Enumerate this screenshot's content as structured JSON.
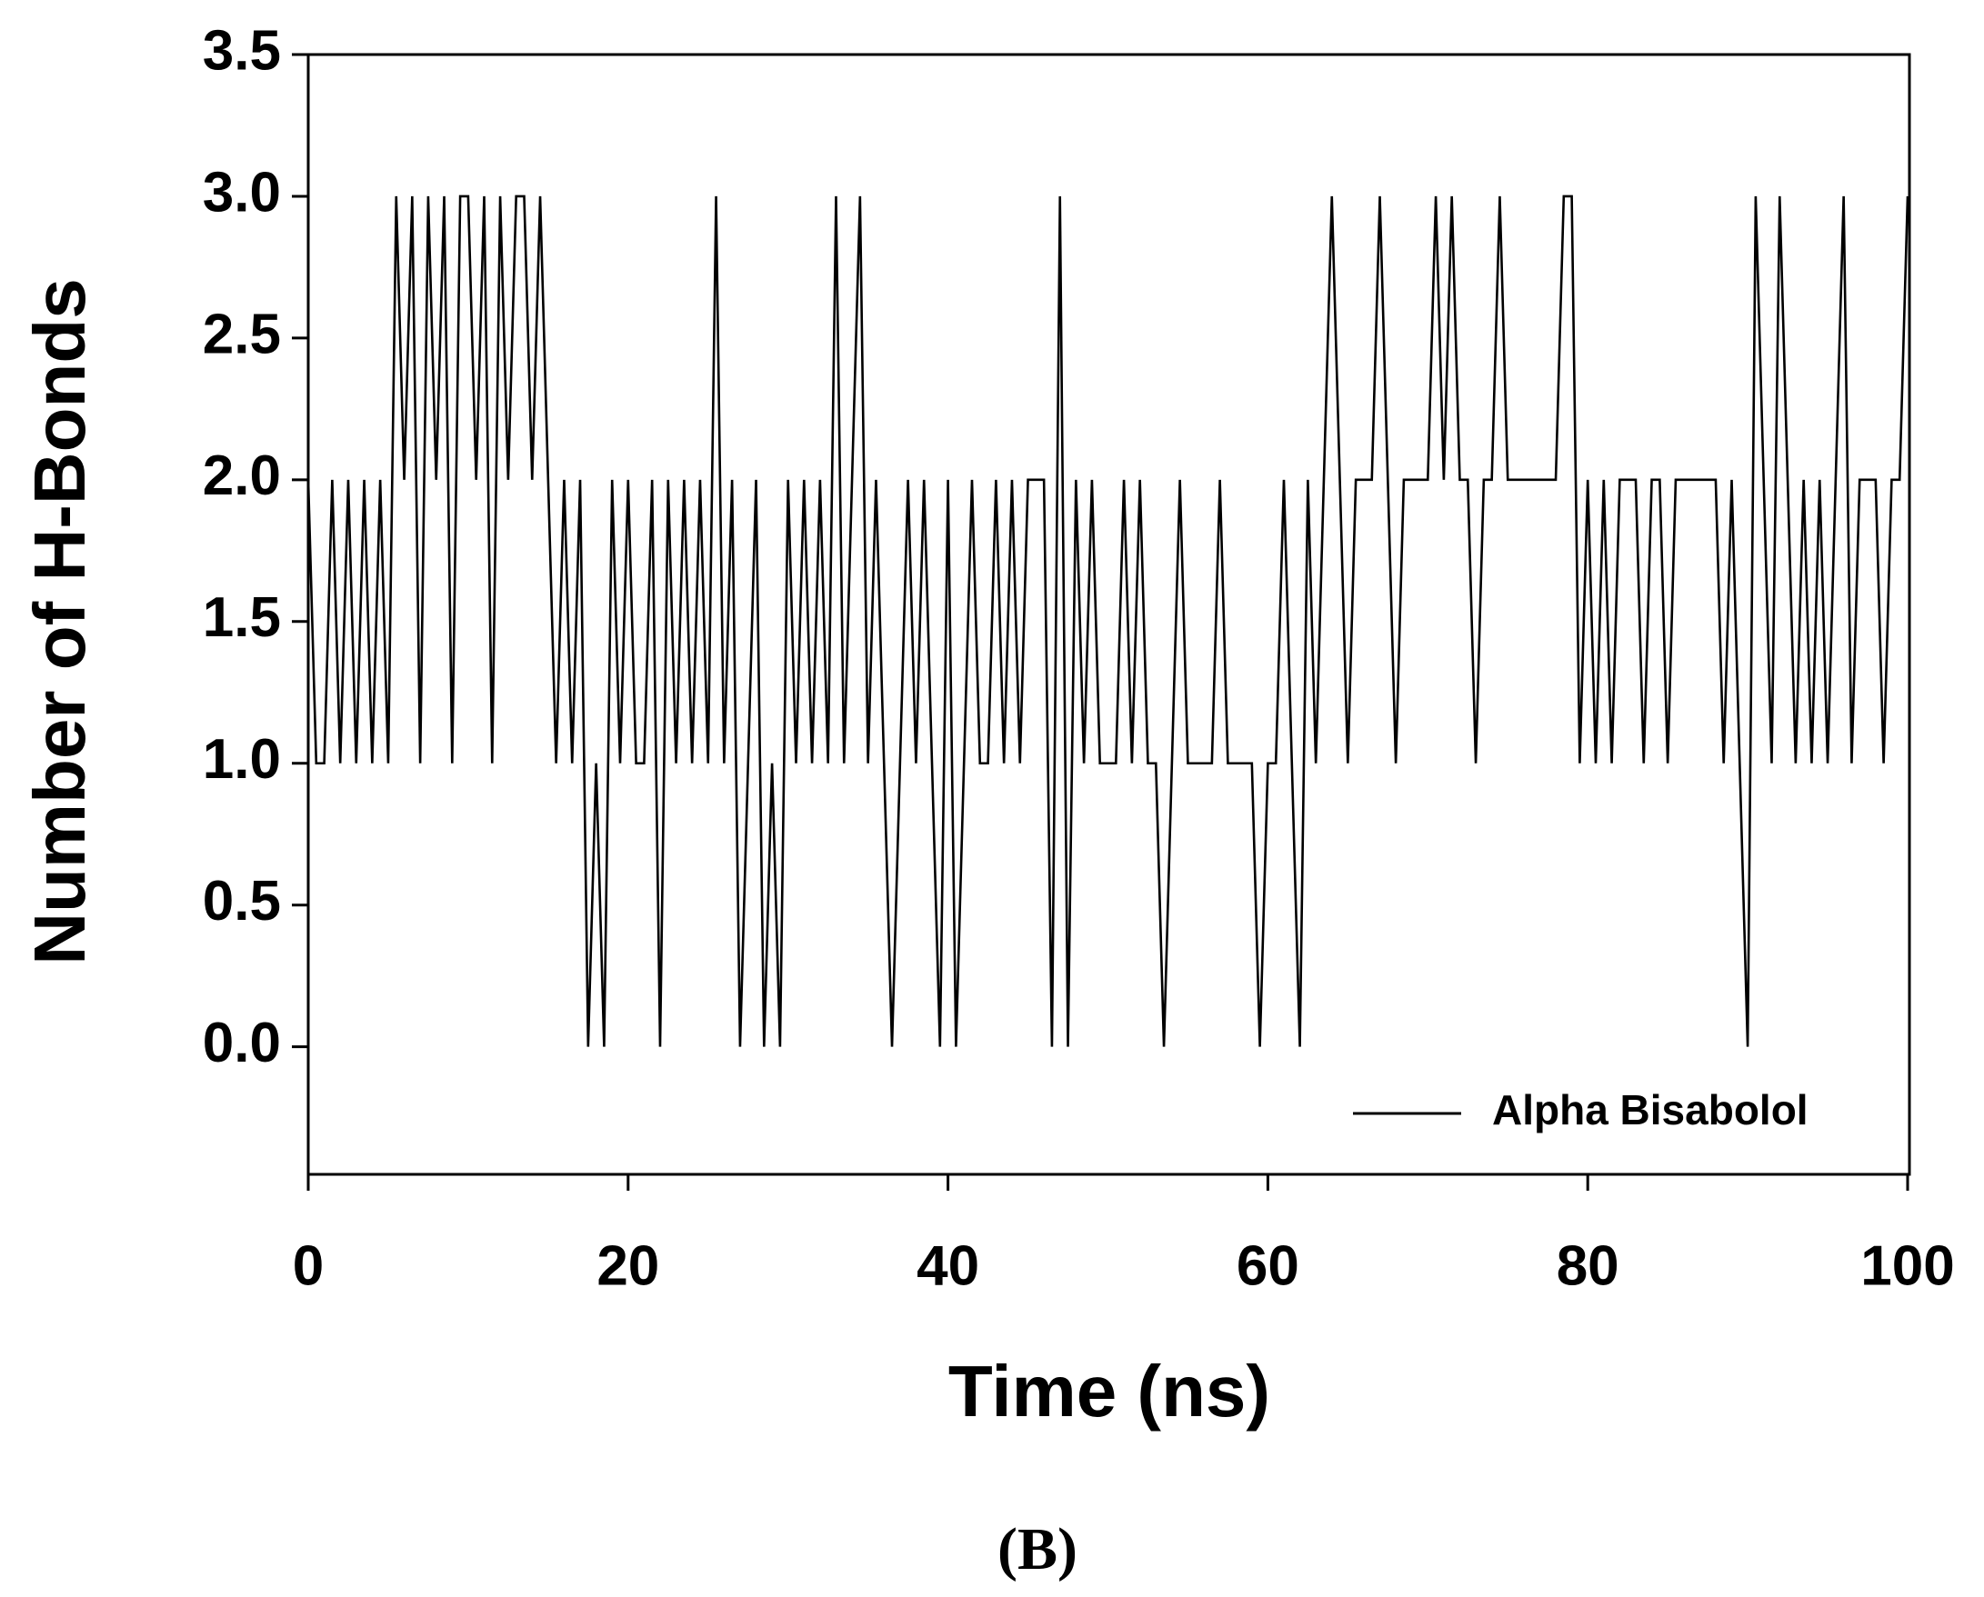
{
  "chart_data": {
    "type": "line",
    "xlabel": "Time (ns)",
    "ylabel": "Number of H-Bonds",
    "caption": "(B)",
    "x": [
      0,
      0.5,
      1,
      1.5,
      2,
      2.5,
      3,
      3.5,
      4,
      4.5,
      5,
      5.5,
      6,
      6.5,
      7,
      7.5,
      8,
      8.5,
      9,
      9.5,
      10,
      10.5,
      11,
      11.5,
      12,
      12.5,
      13,
      13.5,
      14,
      14.5,
      15,
      15.5,
      16,
      16.5,
      17,
      17.5,
      18,
      18.5,
      19,
      19.5,
      20,
      20.5,
      21,
      21.5,
      22,
      22.5,
      23,
      23.5,
      24,
      24.5,
      25,
      25.5,
      26,
      26.5,
      27,
      27.5,
      28,
      28.5,
      29,
      29.5,
      30,
      30.5,
      31,
      31.5,
      32,
      32.5,
      33,
      33.5,
      34,
      34.5,
      35,
      35.5,
      36,
      36.5,
      37,
      37.5,
      38,
      38.5,
      39,
      39.5,
      40,
      40.5,
      41,
      41.5,
      42,
      42.5,
      43,
      43.5,
      44,
      44.5,
      45,
      45.5,
      46,
      46.5,
      47,
      47.5,
      48,
      48.5,
      49,
      49.5,
      50,
      50.5,
      51,
      51.5,
      52,
      52.5,
      53,
      53.5,
      54,
      54.5,
      55,
      55.5,
      56,
      56.5,
      57,
      57.5,
      58,
      58.5,
      59,
      59.5,
      60,
      60.5,
      61,
      61.5,
      62,
      62.5,
      63,
      63.5,
      64,
      64.5,
      65,
      65.5,
      66,
      66.5,
      67,
      67.5,
      68,
      68.5,
      69,
      69.5,
      70,
      70.5,
      71,
      71.5,
      72,
      72.5,
      73,
      73.5,
      74,
      74.5,
      75,
      75.5,
      76,
      76.5,
      77,
      77.5,
      78,
      78.5,
      79,
      79.5,
      80,
      80.5,
      81,
      81.5,
      82,
      82.5,
      83,
      83.5,
      84,
      84.5,
      85,
      85.5,
      86,
      86.5,
      87,
      87.5,
      88,
      88.5,
      89,
      89.5,
      90,
      90.5,
      91,
      91.5,
      92,
      92.5,
      93,
      93.5,
      94,
      94.5,
      95,
      95.5,
      96,
      96.5,
      97,
      97.5,
      98,
      98.5,
      99,
      99.5,
      100
    ],
    "series": [
      {
        "name": "Alpha Bisabolol",
        "color": "#000000",
        "values": [
          2,
          1,
          1,
          2,
          1,
          2,
          1,
          2,
          1,
          2,
          1,
          3,
          2,
          3,
          1,
          3,
          2,
          3,
          1,
          3,
          3,
          2,
          3,
          1,
          3,
          2,
          3,
          3,
          2,
          3,
          2,
          1,
          2,
          1,
          2,
          0,
          1,
          0,
          2,
          1,
          2,
          1,
          1,
          2,
          0,
          2,
          1,
          2,
          1,
          2,
          1,
          3,
          1,
          2,
          0,
          1,
          2,
          0,
          1,
          0,
          2,
          1,
          2,
          1,
          2,
          1,
          3,
          1,
          2,
          3,
          1,
          2,
          1,
          0,
          1,
          2,
          1,
          2,
          1,
          0,
          2,
          0,
          1,
          2,
          1,
          1,
          2,
          1,
          2,
          1,
          2,
          2,
          2,
          0,
          3,
          0,
          2,
          1,
          2,
          1,
          1,
          1,
          2,
          1,
          2,
          1,
          1,
          0,
          1,
          2,
          1,
          1,
          1,
          1,
          2,
          1,
          1,
          1,
          1,
          0,
          1,
          1,
          2,
          1,
          0,
          2,
          1,
          2,
          3,
          2,
          1,
          2,
          2,
          2,
          3,
          2,
          1,
          2,
          2,
          2,
          2,
          3,
          2,
          3,
          2,
          2,
          1,
          2,
          2,
          3,
          2,
          2,
          2,
          2,
          2,
          2,
          2,
          3,
          3,
          1,
          2,
          1,
          2,
          1,
          2,
          2,
          2,
          1,
          2,
          2,
          1,
          2,
          2,
          2,
          2,
          2,
          2,
          1,
          2,
          1,
          0,
          3,
          2,
          1,
          3,
          2,
          1,
          2,
          1,
          2,
          1,
          2,
          3,
          1,
          2,
          2,
          2,
          1,
          2,
          2,
          3
        ]
      }
    ],
    "xlim": [
      0,
      100
    ],
    "xticks": [
      0,
      20,
      40,
      60,
      80,
      100
    ],
    "ylim": [
      -0.45,
      3.5
    ],
    "yticks": [
      {
        "value": 0,
        "label": "0.0"
      },
      0.5,
      {
        "value": 1,
        "label": "1.0"
      },
      1.5,
      {
        "value": 2,
        "label": "2.0"
      },
      2.5,
      {
        "value": 3,
        "label": "3.0"
      },
      3.5
    ],
    "legend": "lower right",
    "grid": false
  }
}
